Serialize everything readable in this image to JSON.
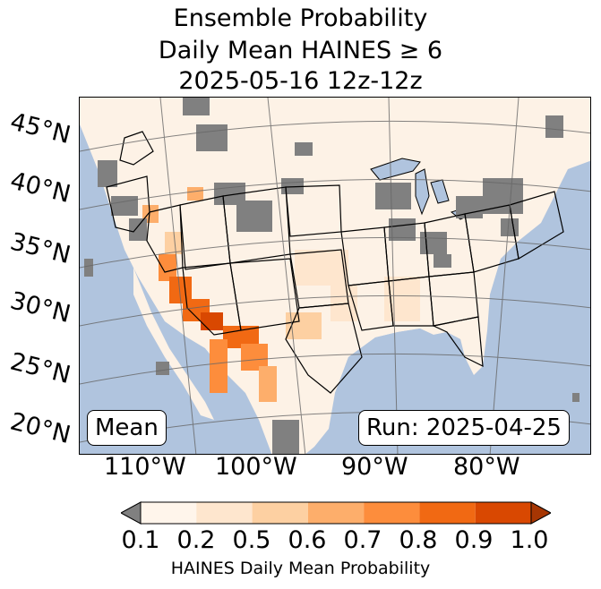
{
  "title": {
    "line1": "Ensemble Probability",
    "line2": "Daily Mean HAINES ≥ 6",
    "line3": "2025-05-16 12z-12z"
  },
  "map": {
    "lat_labels": [
      "45°N",
      "40°N",
      "35°N",
      "30°N",
      "25°N",
      "20°N"
    ],
    "lon_labels": [
      "110°W",
      "100°W",
      "90°W",
      "80°W"
    ],
    "stat_label": "Mean",
    "run_label": "Run: 2025-04-25",
    "colors": {
      "ocean": "#b0c4de",
      "land": "#fdf2e6",
      "missing": "#808080",
      "grid": "#666666"
    }
  },
  "colorbar": {
    "label": "HAINES Daily Mean Probability",
    "ticks": [
      "0.1",
      "0.2",
      "0.5",
      "0.6",
      "0.7",
      "0.8",
      "0.9",
      "1.0"
    ],
    "colors": [
      "#fff5eb",
      "#fee6ce",
      "#fdd0a2",
      "#fdae6b",
      "#fd8d3c",
      "#f16913",
      "#d94801"
    ],
    "under_color": "#808080",
    "over_color": "#a63603"
  }
}
